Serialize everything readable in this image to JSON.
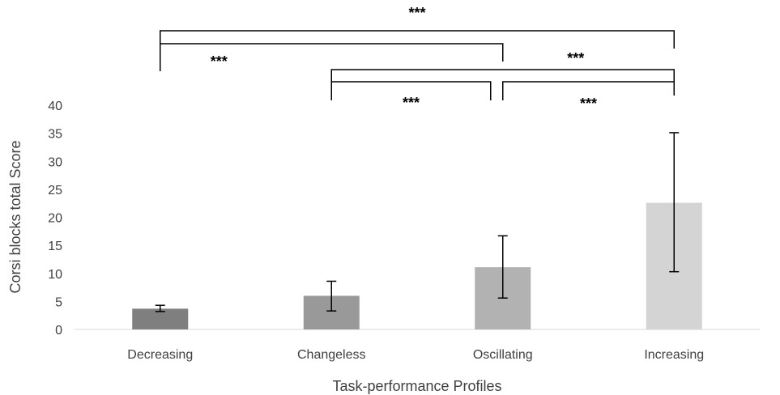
{
  "chart_data": {
    "type": "bar",
    "title": "",
    "xlabel": "Task-performance Profiles",
    "ylabel": "Corsi blocks total Score",
    "categories": [
      "Decreasing",
      "Changeless",
      "Oscillating",
      "Increasing"
    ],
    "values": [
      3.7,
      6.0,
      11.1,
      22.6
    ],
    "error_low": [
      3.2,
      3.3,
      5.6,
      10.3
    ],
    "error_high": [
      4.3,
      8.6,
      16.7,
      35.1
    ],
    "bar_colors": [
      "#7f7f7f",
      "#999999",
      "#b2b2b2",
      "#d4d4d4"
    ],
    "ylim": [
      0,
      40
    ],
    "yticks": [
      "0",
      "5",
      "10",
      "15",
      "20",
      "25",
      "30",
      "35",
      "40"
    ],
    "grid": false,
    "legend": "none",
    "significance": [
      {
        "from": "Decreasing",
        "to": "Increasing",
        "label": "***"
      },
      {
        "from": "Decreasing",
        "to": "Oscillating",
        "label": "***"
      },
      {
        "from": "Changeless",
        "to": "Increasing",
        "label": "***"
      },
      {
        "from": "Changeless",
        "to": "Oscillating",
        "label": "***"
      },
      {
        "from": "Oscillating",
        "to": "Increasing",
        "label": "***"
      }
    ]
  }
}
